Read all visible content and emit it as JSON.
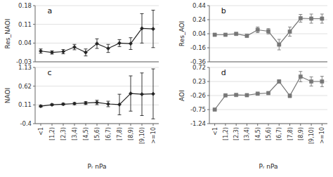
{
  "chart_data": [
    {
      "type": "line",
      "title": "a",
      "ylabel": "Res_NAOI",
      "color": "#222222",
      "marker": "diamond",
      "grid": true,
      "tick_labels": "y",
      "ylim": [
        -0.03,
        0.18
      ],
      "yticks": [
        -0.03,
        0.04,
        0.11,
        0.18
      ],
      "values": [
        0.01,
        0.005,
        0.008,
        0.025,
        0.005,
        0.038,
        0.02,
        0.04,
        0.038,
        0.095,
        0.093
      ],
      "errors": [
        0.008,
        0.006,
        0.008,
        0.01,
        0.013,
        0.018,
        0.015,
        0.013,
        0.022,
        0.055,
        0.07
      ]
    },
    {
      "type": "line",
      "title": "b",
      "ylabel": "Res_AOI",
      "color": "#777777",
      "marker": "square",
      "grid": true,
      "tick_labels": "y",
      "ylim": [
        -0.36,
        0.44
      ],
      "yticks": [
        -0.36,
        -0.16,
        0.04,
        0.24,
        0.44
      ],
      "values": [
        0.025,
        0.025,
        0.038,
        0.01,
        0.095,
        0.075,
        -0.115,
        0.07,
        0.26,
        0.255,
        0.255
      ],
      "errors": [
        0.008,
        0.008,
        0.018,
        0.018,
        0.04,
        0.038,
        0.075,
        0.065,
        0.055,
        0.065,
        0.065
      ]
    },
    {
      "type": "line",
      "title": "c",
      "ylabel": "NAOI",
      "xlabel": "Pᵣ nPa",
      "color": "#222222",
      "marker": "diamond",
      "grid": true,
      "categories": [
        "<1",
        "[1,2)",
        "[2,3)",
        "[3,4)",
        "[4,5)",
        "[5,6)",
        "[6,7)",
        "[7,8)",
        "[8,9)",
        "[9,10)",
        ">=10"
      ],
      "ylim": [
        -0.4,
        1.13
      ],
      "yticks": [
        -0.4,
        0.11,
        0.62,
        1.13
      ],
      "values": [
        0.075,
        0.115,
        0.13,
        0.145,
        0.16,
        0.175,
        0.135,
        0.12,
        0.42,
        0.4,
        0.41
      ],
      "errors": [
        0.025,
        0.022,
        0.025,
        0.03,
        0.04,
        0.06,
        0.075,
        0.28,
        0.48,
        0.58,
        0.68
      ]
    },
    {
      "type": "line",
      "title": "d",
      "ylabel": "AOI",
      "xlabel": "Pᵣ nPa",
      "color": "#777777",
      "marker": "square",
      "grid": true,
      "categories": [
        "<1",
        "[1,2)",
        "[2,3)",
        "[3,4)",
        "[4,5)",
        "[5,6)",
        "[6,7)",
        "[7,8)",
        "[8,9)",
        "[9,10)",
        ">=10"
      ],
      "ylim": [
        -1.24,
        0.72
      ],
      "yticks": [
        -1.24,
        -0.75,
        -0.26,
        0.23,
        0.72
      ],
      "values": [
        -0.75,
        -0.255,
        -0.24,
        -0.248,
        -0.195,
        -0.175,
        0.23,
        -0.27,
        0.4,
        0.23,
        0.23
      ],
      "errors": [
        0.01,
        0.01,
        0.015,
        0.015,
        0.025,
        0.03,
        0.055,
        0.06,
        0.18,
        0.16,
        0.18
      ]
    }
  ]
}
